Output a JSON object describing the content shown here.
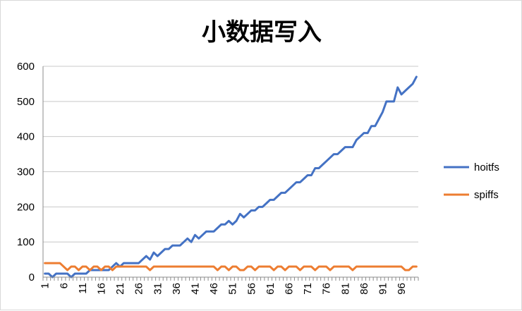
{
  "chart_data": {
    "type": "line",
    "title": "小数据写入",
    "xlabel": "",
    "ylabel": "",
    "ylim": [
      0,
      600
    ],
    "yticks": [
      0,
      100,
      200,
      300,
      400,
      500,
      600
    ],
    "x": [
      1,
      2,
      3,
      4,
      5,
      6,
      7,
      8,
      9,
      10,
      11,
      12,
      13,
      14,
      15,
      16,
      17,
      18,
      19,
      20,
      21,
      22,
      23,
      24,
      25,
      26,
      27,
      28,
      29,
      30,
      31,
      32,
      33,
      34,
      35,
      36,
      37,
      38,
      39,
      40,
      41,
      42,
      43,
      44,
      45,
      46,
      47,
      48,
      49,
      50,
      51,
      52,
      53,
      54,
      55,
      56,
      57,
      58,
      59,
      60,
      61,
      62,
      63,
      64,
      65,
      66,
      67,
      68,
      69,
      70,
      71,
      72,
      73,
      74,
      75,
      76,
      77,
      78,
      79,
      80,
      81,
      82,
      83,
      84,
      85,
      86,
      87,
      88,
      89,
      90,
      91,
      92,
      93,
      94,
      95,
      96,
      97,
      98,
      99,
      100
    ],
    "xtick_labels": [
      1,
      6,
      11,
      16,
      21,
      26,
      31,
      36,
      41,
      46,
      51,
      56,
      61,
      66,
      71,
      76,
      81,
      86,
      91,
      96
    ],
    "grid": true,
    "legend_position": "right",
    "series": [
      {
        "name": "hoitfs",
        "color": "#4472c4",
        "values": [
          10,
          10,
          0,
          10,
          10,
          10,
          10,
          0,
          10,
          10,
          10,
          10,
          20,
          20,
          20,
          20,
          20,
          20,
          30,
          40,
          30,
          40,
          40,
          40,
          40,
          40,
          50,
          60,
          50,
          70,
          60,
          70,
          80,
          80,
          90,
          90,
          90,
          100,
          110,
          100,
          120,
          110,
          120,
          130,
          130,
          130,
          140,
          150,
          150,
          160,
          150,
          160,
          180,
          170,
          180,
          190,
          190,
          200,
          200,
          210,
          220,
          220,
          230,
          240,
          240,
          250,
          260,
          270,
          270,
          280,
          290,
          290,
          310,
          310,
          320,
          330,
          340,
          350,
          350,
          360,
          370,
          370,
          370,
          390,
          400,
          410,
          410,
          430,
          430,
          450,
          470,
          500,
          500,
          500,
          540,
          520,
          530,
          540,
          550,
          570
        ]
      },
      {
        "name": "spiffs",
        "color": "#ed7d31",
        "values": [
          40,
          40,
          40,
          40,
          40,
          30,
          20,
          30,
          30,
          20,
          30,
          30,
          20,
          30,
          30,
          20,
          30,
          30,
          20,
          30,
          30,
          30,
          30,
          30,
          30,
          30,
          30,
          30,
          20,
          30,
          30,
          30,
          30,
          30,
          30,
          30,
          30,
          30,
          30,
          30,
          30,
          30,
          30,
          30,
          30,
          30,
          20,
          30,
          30,
          20,
          30,
          30,
          20,
          20,
          30,
          30,
          20,
          30,
          30,
          30,
          30,
          20,
          30,
          30,
          20,
          30,
          30,
          30,
          20,
          30,
          30,
          30,
          20,
          30,
          30,
          30,
          20,
          30,
          30,
          30,
          30,
          30,
          20,
          30,
          30,
          30,
          30,
          30,
          30,
          30,
          30,
          30,
          30,
          30,
          30,
          30,
          20,
          20,
          30,
          30
        ]
      }
    ]
  }
}
